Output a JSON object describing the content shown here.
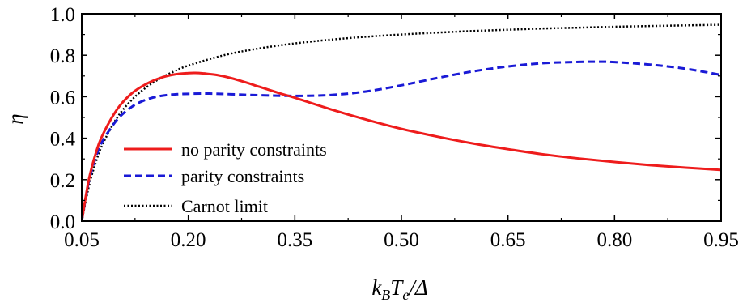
{
  "chart_data": {
    "type": "line",
    "title": "",
    "xlabel": {
      "pre": "k",
      "sub1": "B",
      "mid": "T",
      "sub2": "e",
      "post": "/Δ"
    },
    "ylabel": "η",
    "xlim": [
      0.05,
      0.95
    ],
    "ylim": [
      0.0,
      1.0
    ],
    "xticks": [
      0.05,
      0.2,
      0.35,
      0.5,
      0.65,
      0.8,
      0.95
    ],
    "xtick_labels": [
      "0.05",
      "0.20",
      "0.35",
      "0.50",
      "0.65",
      "0.80",
      "0.95"
    ],
    "yticks": [
      0.0,
      0.2,
      0.4,
      0.6,
      0.8,
      1.0
    ],
    "ytick_labels": [
      "0.0",
      "0.2",
      "0.4",
      "0.6",
      "0.8",
      "1.0"
    ],
    "grid": false,
    "legend_position": "bottom-left",
    "series": [
      {
        "name": "no parity constraints",
        "color": "#ee1c1c",
        "style": "solid",
        "x": [
          0.05,
          0.06,
          0.07,
          0.08,
          0.1,
          0.12,
          0.14,
          0.16,
          0.18,
          0.2,
          0.21,
          0.22,
          0.24,
          0.26,
          0.28,
          0.3,
          0.33,
          0.35,
          0.4,
          0.45,
          0.5,
          0.55,
          0.6,
          0.65,
          0.7,
          0.75,
          0.8,
          0.85,
          0.9,
          0.95
        ],
        "y": [
          0.0,
          0.2,
          0.33,
          0.42,
          0.54,
          0.615,
          0.66,
          0.69,
          0.707,
          0.714,
          0.715,
          0.713,
          0.705,
          0.69,
          0.67,
          0.648,
          0.615,
          0.595,
          0.54,
          0.49,
          0.445,
          0.408,
          0.375,
          0.347,
          0.322,
          0.302,
          0.285,
          0.27,
          0.258,
          0.247
        ]
      },
      {
        "name": "parity constraints",
        "color": "#1a1ad6",
        "style": "dashed",
        "x": [
          0.05,
          0.06,
          0.07,
          0.08,
          0.1,
          0.12,
          0.14,
          0.16,
          0.18,
          0.2,
          0.23,
          0.26,
          0.3,
          0.35,
          0.4,
          0.45,
          0.5,
          0.55,
          0.6,
          0.65,
          0.7,
          0.75,
          0.78,
          0.8,
          0.85,
          0.9,
          0.95
        ],
        "y": [
          0.0,
          0.19,
          0.31,
          0.39,
          0.49,
          0.55,
          0.585,
          0.603,
          0.611,
          0.614,
          0.615,
          0.612,
          0.607,
          0.604,
          0.608,
          0.625,
          0.655,
          0.69,
          0.722,
          0.746,
          0.762,
          0.768,
          0.769,
          0.767,
          0.755,
          0.735,
          0.705
        ]
      },
      {
        "name": "Carnot limit",
        "color": "#000000",
        "style": "dotted",
        "x": [
          0.05,
          0.06,
          0.07,
          0.08,
          0.1,
          0.12,
          0.14,
          0.16,
          0.18,
          0.2,
          0.25,
          0.3,
          0.35,
          0.4,
          0.45,
          0.5,
          0.55,
          0.6,
          0.65,
          0.7,
          0.75,
          0.8,
          0.85,
          0.9,
          0.95
        ],
        "y": [
          0.0,
          0.167,
          0.286,
          0.375,
          0.5,
          0.583,
          0.643,
          0.6875,
          0.722,
          0.75,
          0.8,
          0.833,
          0.857,
          0.875,
          0.889,
          0.9,
          0.909,
          0.917,
          0.923,
          0.929,
          0.933,
          0.9375,
          0.941,
          0.944,
          0.947
        ]
      }
    ]
  }
}
